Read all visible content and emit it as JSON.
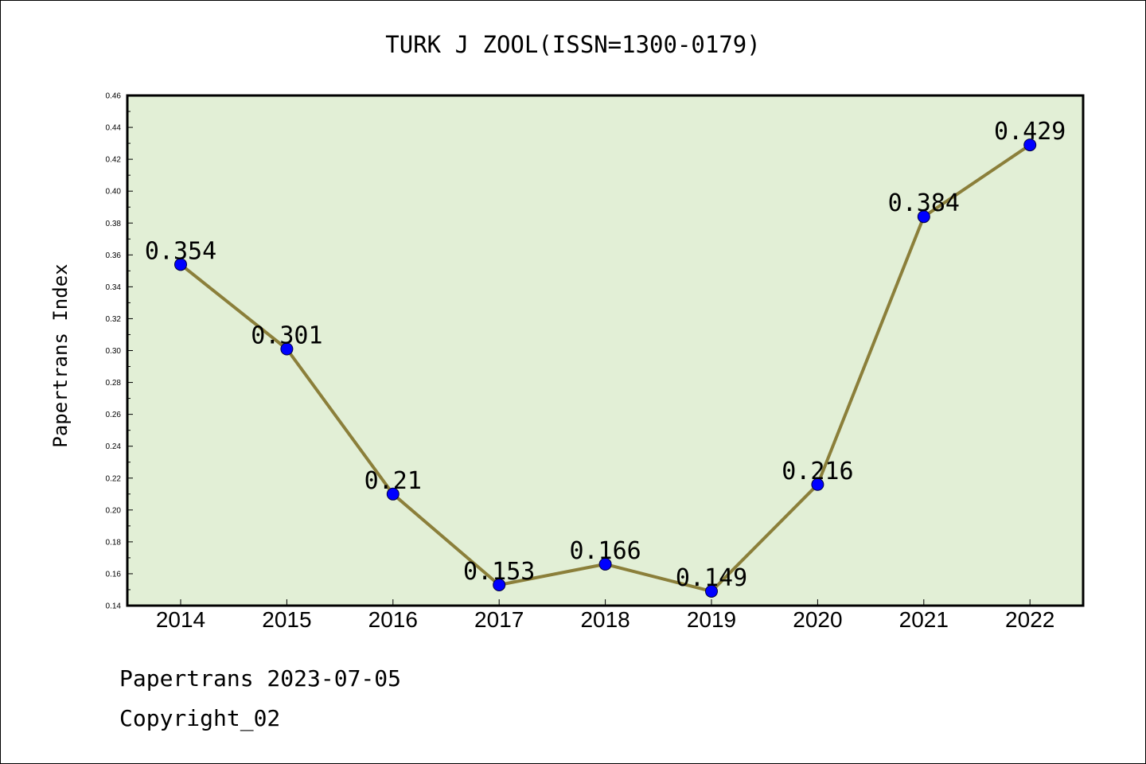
{
  "chart_data": {
    "type": "line",
    "title": "TURK J ZOOL(ISSN=1300-0179)",
    "xlabel": "",
    "ylabel": "Papertrans Index",
    "categories": [
      "2014",
      "2015",
      "2016",
      "2017",
      "2018",
      "2019",
      "2020",
      "2021",
      "2022"
    ],
    "series": [
      {
        "values": [
          0.354,
          0.301,
          0.21,
          0.153,
          0.166,
          0.149,
          0.216,
          0.384,
          0.429
        ]
      }
    ],
    "data_labels": [
      "0.354",
      "0.301",
      "0.21",
      "0.153",
      "0.166",
      "0.149",
      "0.216",
      "0.384",
      "0.429"
    ],
    "ylim": [
      0.14,
      0.46
    ],
    "yticks": [
      "0.14",
      "0.16",
      "0.18",
      "0.20",
      "0.22",
      "0.24",
      "0.26",
      "0.28",
      "0.30",
      "0.32",
      "0.34",
      "0.36",
      "0.38",
      "0.40",
      "0.42",
      "0.44",
      "0.46"
    ],
    "grid": false,
    "legend": "none",
    "colors": {
      "plot_background": "#e2efd6",
      "line": "#8b7f3a",
      "marker": "#0000ff"
    }
  },
  "footer": {
    "line1": "Papertrans 2023-07-05",
    "line2": "Copyright_02"
  }
}
